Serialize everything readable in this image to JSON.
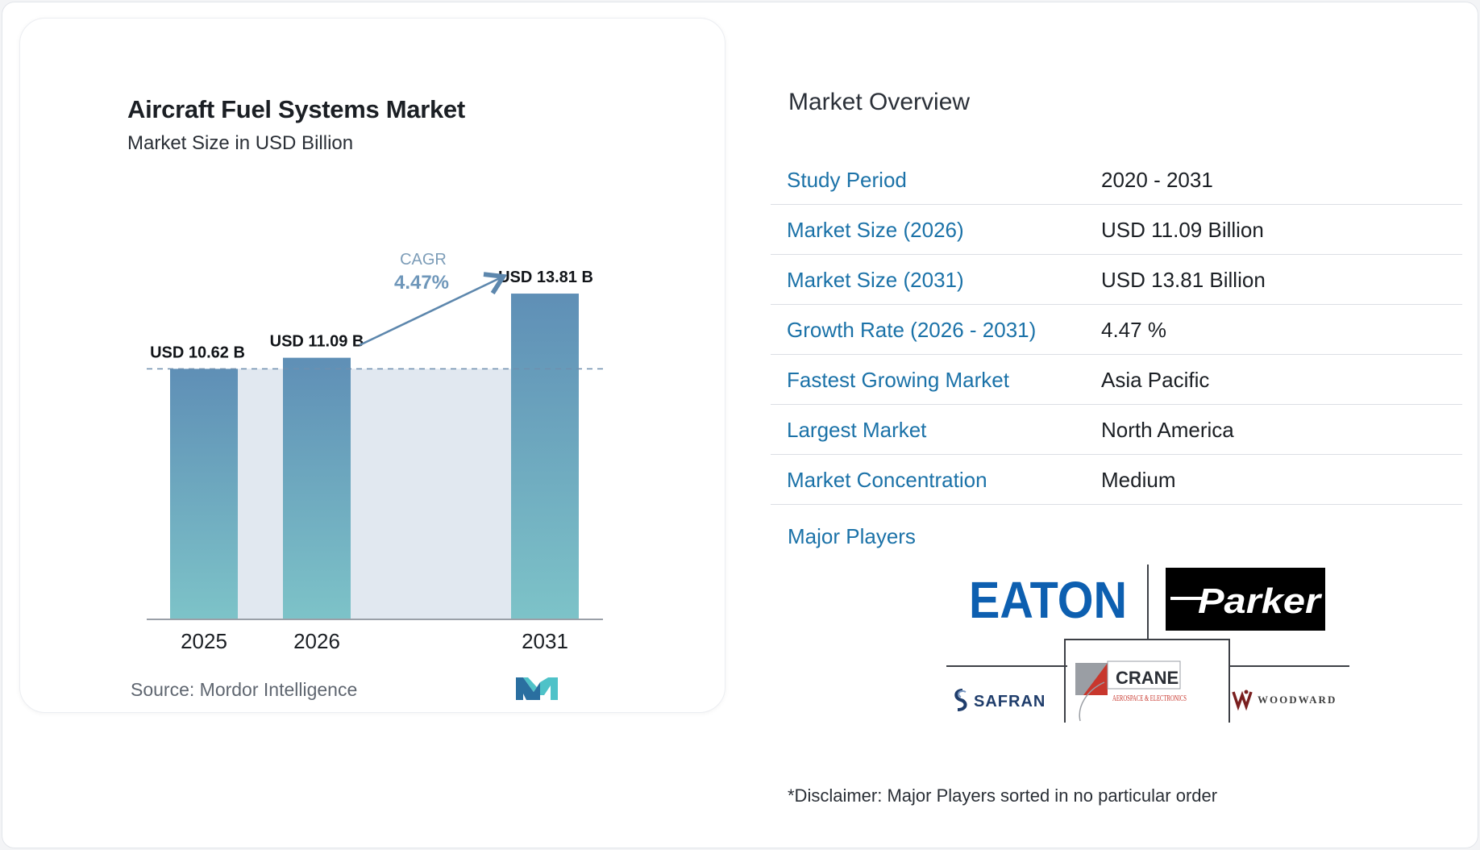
{
  "chart_card": {
    "title": "Aircraft Fuel Systems Market",
    "subtitle": "Market Size in USD Billion",
    "source": "Source: Mordor Intelligence",
    "logo_icon": "mordor-intelligence-logo",
    "cagr_label": "CAGR",
    "cagr_value": "4.47%"
  },
  "chart_data": {
    "type": "bar",
    "title": "Aircraft Fuel Systems Market",
    "subtitle": "Market Size in USD Billion",
    "categories": [
      "2025",
      "2026",
      "2031"
    ],
    "values": [
      10.62,
      11.09,
      13.81
    ],
    "data_labels": [
      "USD 10.62 B",
      "USD 11.09 B",
      "USD 13.81 B"
    ],
    "ylim": [
      0,
      14.5
    ],
    "grid": false,
    "reference_line": 10.62,
    "cagr": "4.47%",
    "colors": {
      "bar_top": "#5f8fb6",
      "bar_bottom": "#7dc3c8",
      "shade": "#e1e8f0",
      "arrow": "#5d87ad"
    }
  },
  "overview": {
    "title": "Market Overview",
    "rows": [
      {
        "key": "Study Period",
        "value": "2020 - 2031"
      },
      {
        "key": "Market Size (2026)",
        "value": "USD 11.09 Billion"
      },
      {
        "key": "Market Size (2031)",
        "value": "USD 13.81 Billion"
      },
      {
        "key": "Growth Rate (2026 - 2031)",
        "value": "4.47 %"
      },
      {
        "key": "Fastest Growing Market",
        "value": "Asia Pacific"
      },
      {
        "key": "Largest Market",
        "value": "North America"
      },
      {
        "key": "Market Concentration",
        "value": "Medium"
      }
    ],
    "players_title": "Major Players",
    "players": [
      {
        "name": "EATON",
        "icon": "eaton-logo",
        "color": "#0d5fb0"
      },
      {
        "name": "Parker",
        "icon": "parker-logo",
        "color": "#000000"
      },
      {
        "name": "SAFRAN",
        "icon": "safran-logo",
        "color": "#1f3d6b"
      },
      {
        "name": "CRANE",
        "sub": "AEROSPACE & ELECTRONICS",
        "icon": "crane-logo",
        "color": "#c8372d"
      },
      {
        "name": "WOODWARD",
        "icon": "woodward-logo",
        "color": "#7a1f1f"
      }
    ],
    "disclaimer": "*Disclaimer: Major Players sorted in no particular order"
  }
}
